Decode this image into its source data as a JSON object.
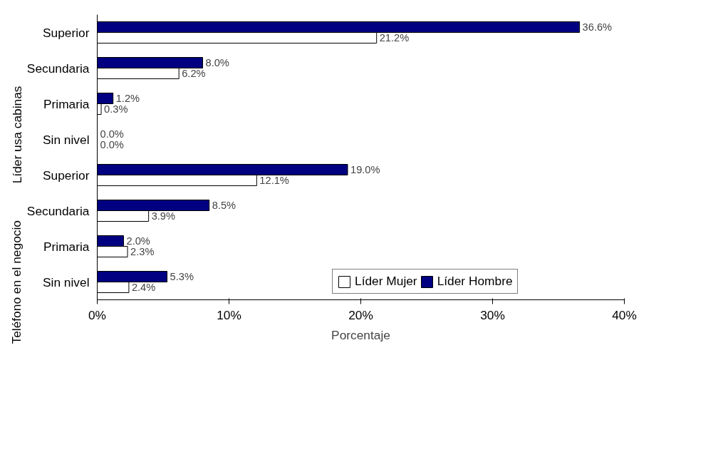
{
  "chart_data": {
    "type": "bar",
    "orientation": "horizontal",
    "xlabel": "Porcentaje",
    "categories": [
      "Superior",
      "Secundaria",
      "Primaria",
      "Sin nivel",
      "Superior",
      "Secundaria",
      "Primaria",
      "Sin nivel"
    ],
    "annotations": [
      "Líder usa cabinas",
      "Teléfono en el negocio"
    ],
    "series": [
      {
        "name": "Líder Hombre",
        "color": "#000080",
        "values": [
          36.6,
          8.0,
          1.2,
          0.0,
          19.0,
          8.5,
          2.0,
          5.3
        ],
        "value_labels": [
          "36.6%",
          "8.0%",
          "1.2%",
          "0.0%",
          "19.0%",
          "8.5%",
          "2.0%",
          "5.3%"
        ]
      },
      {
        "name": "Líder Mujer",
        "color": "#ffffff",
        "values": [
          21.2,
          6.2,
          0.3,
          0.0,
          12.1,
          3.9,
          2.3,
          2.4
        ],
        "value_labels": [
          "21.2%",
          "6.2%",
          "0.3%",
          "0.0%",
          "12.1%",
          "3.9%",
          "2.3%",
          "2.4%"
        ]
      }
    ],
    "xlim": [
      0,
      40
    ],
    "xticks": [
      {
        "value": 0,
        "label": "0%"
      },
      {
        "value": 10,
        "label": "10%"
      },
      {
        "value": 20,
        "label": "20%"
      },
      {
        "value": 30,
        "label": "30%"
      },
      {
        "value": 40,
        "label": "40%"
      }
    ],
    "grid": false,
    "legend": "bottom"
  }
}
